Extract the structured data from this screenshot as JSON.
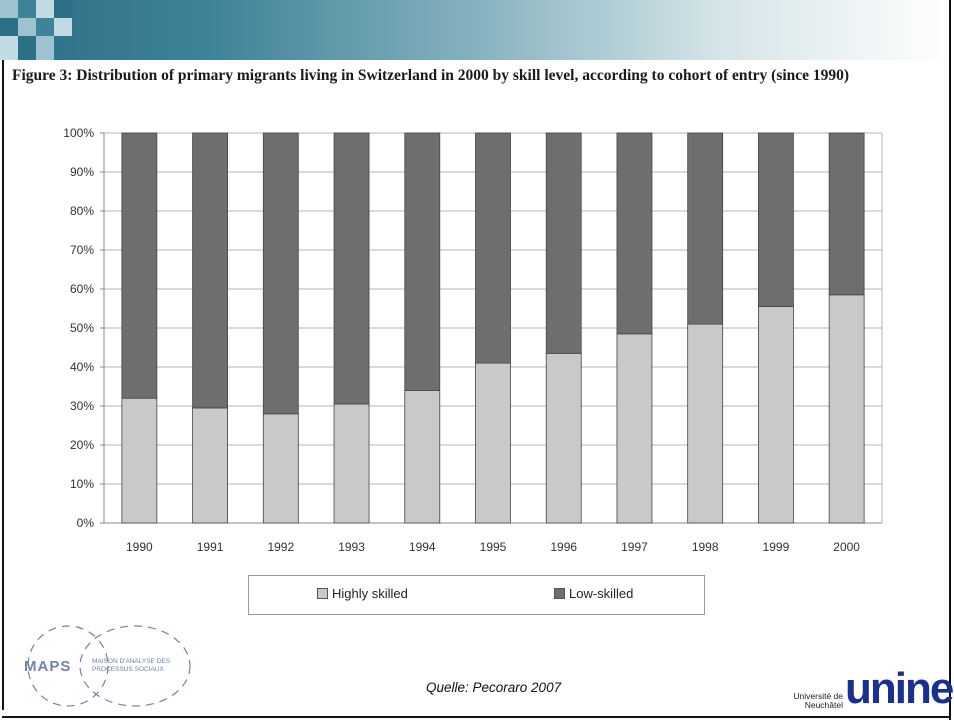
{
  "header": {
    "title": "Figure 3: Distribution of primary migrants living in Switzerland in 2000 by skill level, according to cohort of entry (since 1990)"
  },
  "colors": {
    "highly_skilled": "#c9c9c9",
    "low_skilled": "#6e6e6e",
    "header_band": "#2d6f86",
    "maps_brand": "#7282ad",
    "unine_brand": "#1b2f8f"
  },
  "chart_data": {
    "type": "bar",
    "stacked": true,
    "categories": [
      "1990",
      "1991",
      "1992",
      "1993",
      "1994",
      "1995",
      "1996",
      "1997",
      "1998",
      "1999",
      "2000"
    ],
    "series": [
      {
        "name": "Highly skilled",
        "values": [
          32,
          29.5,
          28,
          30.5,
          34,
          41,
          43.5,
          48.5,
          51,
          55.5,
          58.5
        ]
      },
      {
        "name": "Low-skilled",
        "values": [
          68,
          70.5,
          72,
          69.5,
          66,
          59,
          56.5,
          51.5,
          49,
          44.5,
          41.5
        ]
      }
    ],
    "y_ticks": [
      "0%",
      "10%",
      "20%",
      "30%",
      "40%",
      "50%",
      "60%",
      "70%",
      "80%",
      "90%",
      "100%"
    ],
    "ylim": [
      0,
      100
    ],
    "grid": true,
    "legend_position": "bottom"
  },
  "legend": {
    "highly_skilled_label": "Highly skilled",
    "low_skilled_label": "Low-skilled"
  },
  "footer": {
    "source": "Quelle: Pecoraro 2007",
    "maps_logo_text": "MAPS",
    "maps_logo_subtitle": "MAISON D'ANALYSE DES PROCESSUS SOCIAUX",
    "unine_small_text": "Université de Neuchâtel",
    "unine_logo_text": "unine"
  }
}
